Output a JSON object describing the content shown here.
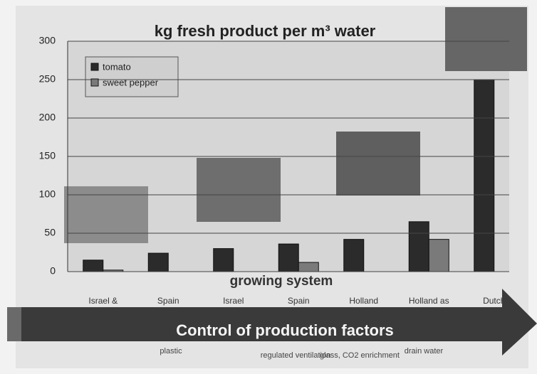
{
  "chart_data": {
    "type": "bar",
    "title": "kg fresh product per m³ water",
    "x_label": "growing system",
    "categories": [
      "Israel &",
      "Spain",
      "Israel",
      "Spain",
      "Holland",
      "Holland as",
      "Dutch"
    ],
    "series": [
      {
        "name": "tomato",
        "color": "#2b2b2b",
        "values": [
          15,
          24,
          30,
          36,
          42,
          65,
          250
        ]
      },
      {
        "name": "sweet pepper",
        "color": "#7a7a7a",
        "values": [
          2,
          0,
          0,
          12,
          0,
          42,
          0
        ]
      }
    ],
    "ylim": [
      0,
      300
    ],
    "yticks": [
      0,
      50,
      100,
      150,
      200,
      250,
      300
    ],
    "grid": true,
    "legend": "upper left",
    "arrow_text": "Control of production factors",
    "notes": [
      "plastic",
      "regulated ventilation",
      "glass, CO2 enrichment",
      "drain water"
    ]
  }
}
